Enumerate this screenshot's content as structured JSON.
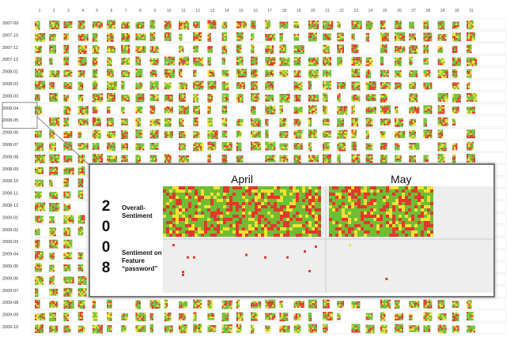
{
  "chart_data": {
    "type": "heatmap",
    "description": "Calendar pixel-map of daily sentiment, one row per month (2007-09 to 2009-10), one column per day of month (1-31); each day is a block of colored pixels (green = positive, yellow = neutral, red = negative).",
    "day_labels": [
      "1",
      "2",
      "3",
      "4",
      "5",
      "6",
      "7",
      "8",
      "9",
      "10",
      "11",
      "12",
      "13",
      "14",
      "15",
      "16",
      "17",
      "18",
      "19",
      "20",
      "21",
      "22",
      "23",
      "24",
      "25",
      "26",
      "27",
      "28",
      "29",
      "30",
      "31"
    ],
    "month_labels": [
      "2007-09",
      "2007-10",
      "2007-11",
      "2007-12",
      "2008-01",
      "2008-02",
      "2008-03",
      "2008-04",
      "2008-05",
      "2008-06",
      "2008-07",
      "2008-08",
      "2008-09",
      "2008-10",
      "2008-11",
      "2008-12",
      "2009-01",
      "2009-02",
      "2009-03",
      "2009-04",
      "2009-05",
      "2009-06",
      "2009-07",
      "2009-08",
      "2009-09",
      "2009-10"
    ],
    "colors": {
      "positive": "#6fbd34",
      "neutral": "#f2e034",
      "negative": "#e0392c"
    },
    "zoom": {
      "year_digits": [
        "2",
        "0",
        "0",
        "8"
      ],
      "months": [
        "April",
        "May"
      ],
      "rows": [
        "Overall-Sentiment",
        "Sentiment on Feature “password”"
      ],
      "feature_points_april": [
        [
          0.06,
          0.05
        ],
        [
          0.15,
          0.3
        ],
        [
          0.19,
          0.3
        ],
        [
          0.52,
          0.25
        ],
        [
          0.64,
          0.3
        ],
        [
          0.78,
          0.3
        ],
        [
          0.89,
          0.18
        ],
        [
          0.96,
          0.08
        ],
        [
          0.12,
          0.6
        ],
        [
          0.12,
          0.66
        ],
        [
          0.92,
          0.58
        ]
      ],
      "feature_points_may": [
        [
          0.18,
          0.05
        ],
        [
          0.51,
          0.74
        ]
      ]
    }
  }
}
